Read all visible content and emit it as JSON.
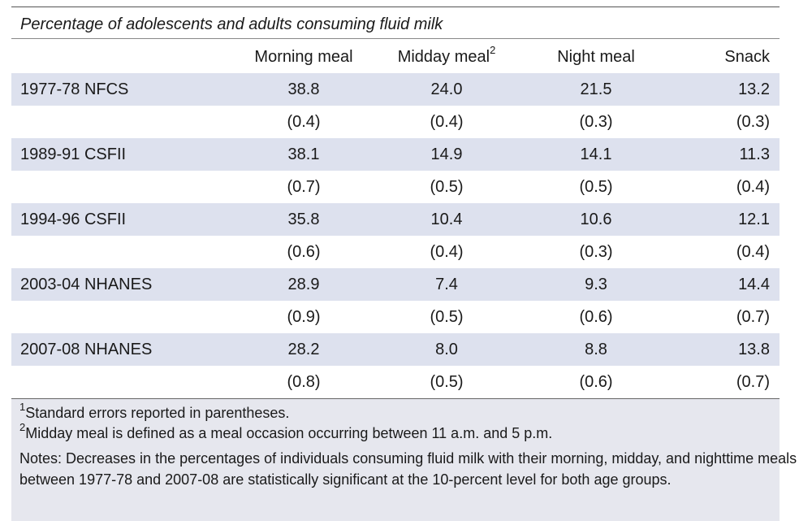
{
  "table": {
    "title": "Percentage of adolescents and adults consuming fluid milk",
    "columns": [
      {
        "text": "Morning meal"
      },
      {
        "text": "Midday meal",
        "sup": "2"
      },
      {
        "text": "Night meal"
      },
      {
        "text": "Snack"
      }
    ],
    "rows": [
      {
        "label": "1977-78 NFCS",
        "values": [
          "38.8",
          "24.0",
          "21.5",
          "13.2"
        ],
        "errors": [
          "(0.4)",
          "(0.4)",
          "(0.3)",
          "(0.3)"
        ]
      },
      {
        "label": "1989-91 CSFII",
        "values": [
          "38.1",
          "14.9",
          "14.1",
          "11.3"
        ],
        "errors": [
          "(0.7)",
          "(0.5)",
          "(0.5)",
          "(0.4)"
        ]
      },
      {
        "label": "1994-96 CSFII",
        "values": [
          "35.8",
          "10.4",
          "10.6",
          "12.1"
        ],
        "errors": [
          "(0.6)",
          "(0.4)",
          "(0.3)",
          "(0.4)"
        ]
      },
      {
        "label": "2003-04 NHANES",
        "values": [
          "28.9",
          "7.4",
          "9.3",
          "14.4"
        ],
        "errors": [
          "(0.9)",
          "(0.5)",
          "(0.6)",
          "(0.7)"
        ]
      },
      {
        "label": "2007-08 NHANES",
        "values": [
          "28.2",
          "8.0",
          "8.8",
          "13.8"
        ],
        "errors": [
          "(0.8)",
          "(0.5)",
          "(0.6)",
          "(0.7)"
        ]
      }
    ]
  },
  "footnotes": [
    {
      "marker": "1",
      "text": "Standard errors reported in parentheses."
    },
    {
      "marker": "2",
      "text": "Midday meal is defined as a meal occasion occurring between 11 a.m. and 5 p.m."
    }
  ],
  "notes": "Notes: Decreases in the percentages of individuals consuming fluid milk with their morning, midday, and nighttime meals between 1977-78 and 2007-08 are statistically significant at the 10-percent level for both age groups."
}
